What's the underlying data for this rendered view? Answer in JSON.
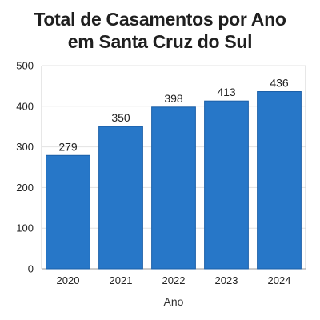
{
  "chart_data": {
    "type": "bar",
    "title_lines": [
      "Total de Casamentos por Ano",
      "em Santa Cruz do Sul"
    ],
    "categories": [
      "2020",
      "2021",
      "2022",
      "2023",
      "2024"
    ],
    "values": [
      279,
      350,
      398,
      413,
      436
    ],
    "data_labels": [
      "279",
      "350",
      "398",
      "413",
      "436"
    ],
    "xlabel": "Ano",
    "ylabel": "",
    "ylim": [
      0,
      500
    ],
    "yticks": [
      0,
      100,
      200,
      300,
      400,
      500
    ],
    "grid": "horizontal",
    "legend": "none",
    "bar_color": "#2777c8",
    "bar_edge_color": "#1a5fa8"
  }
}
